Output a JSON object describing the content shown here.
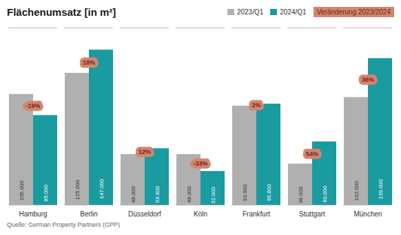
{
  "chart_data": {
    "type": "bar",
    "title": "Flächenumsatz [in m²]",
    "caption": "Quelle: German Property Partners (GPP)",
    "categories": [
      "Hamburg",
      "Berlin",
      "Düsseldorf",
      "Köln",
      "Frankfurt",
      "Stuttgart",
      "München"
    ],
    "series": [
      {
        "name": "2023/Q1",
        "color": "#b0b0b0",
        "values": [
          105000,
          125000,
          48000,
          48000,
          93900,
          39000,
          102000
        ],
        "value_labels": [
          "105.000",
          "125.000",
          "48.000",
          "48.000",
          "93.900",
          "39.000",
          "102.000"
        ]
      },
      {
        "name": "2024/Q1",
        "color": "#1a9ba0",
        "values": [
          85000,
          147000,
          53600,
          32000,
          95800,
          60000,
          139000
        ],
        "value_labels": [
          "85.000",
          "147.000",
          "53.600",
          "32.000",
          "95.800",
          "60.000",
          "139.000"
        ]
      }
    ],
    "annotations": {
      "name": "Veränderung 2023/2024",
      "color": "#d4846e",
      "labels": [
        "-19%",
        "18%",
        "12%",
        "-33%",
        "2%",
        "54%",
        "36%"
      ]
    },
    "ylim": [
      0,
      168000
    ],
    "yticks": [],
    "tick_labels": "x",
    "data_labels": true,
    "grid": false,
    "legend": "upper right"
  }
}
